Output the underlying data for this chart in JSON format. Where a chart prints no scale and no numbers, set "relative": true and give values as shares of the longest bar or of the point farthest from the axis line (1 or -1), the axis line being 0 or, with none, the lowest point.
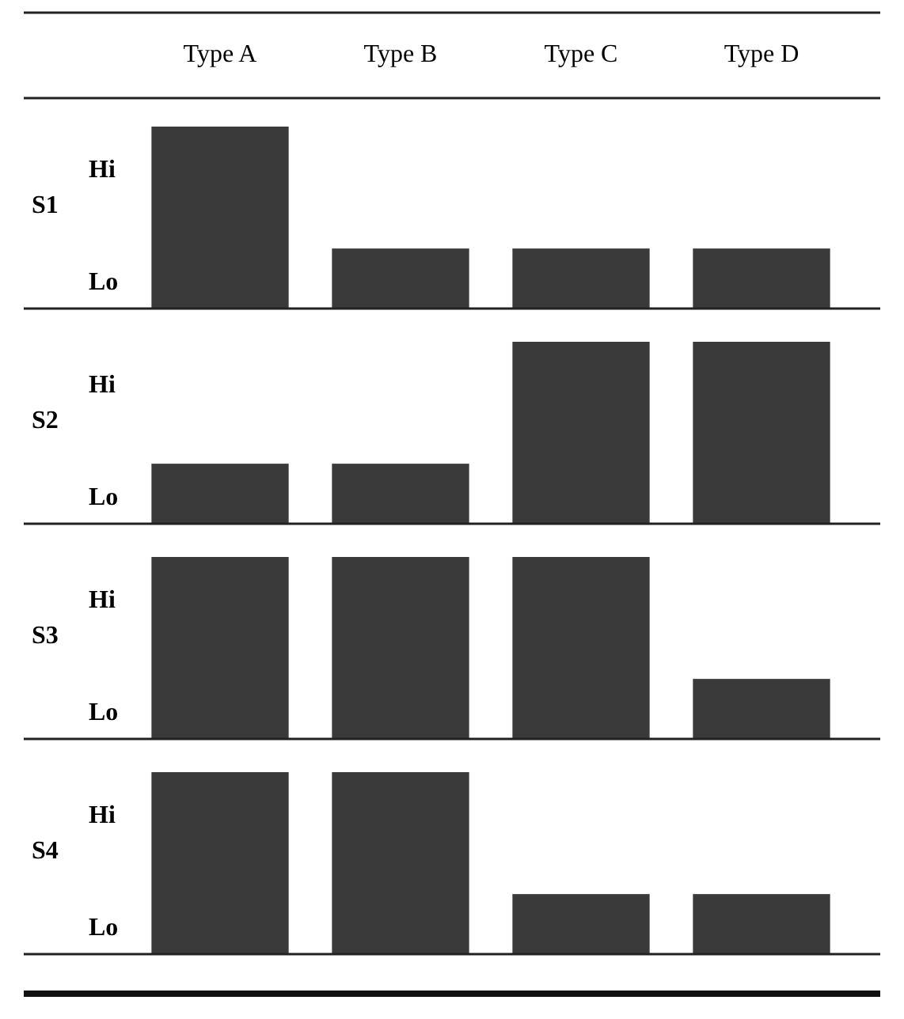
{
  "chart_data": [
    {
      "type": "bar",
      "title": "S1",
      "categories": [
        "Type A",
        "Type B",
        "Type C",
        "Type D"
      ],
      "values": [
        1,
        0.33,
        0.33,
        0.33
      ],
      "color": "#3a3a3a",
      "relative": true,
      "annotations": [
        "Hi",
        "Lo"
      ],
      "tick_labels": "x"
    },
    {
      "type": "bar",
      "title": "S2",
      "categories": [
        null,
        null,
        null,
        null
      ],
      "values": [
        0.33,
        0.33,
        1,
        1
      ],
      "color": "#3a3a3a",
      "relative": true,
      "annotations": [
        "Hi",
        "Lo"
      ],
      "tick_labels": false
    },
    {
      "type": "bar",
      "title": "S3",
      "categories": [
        null,
        null,
        null,
        null
      ],
      "values": [
        1,
        1,
        1,
        0.33
      ],
      "color": "#3a3a3a",
      "relative": true,
      "annotations": [
        "Hi",
        "Lo"
      ],
      "tick_labels": false
    },
    {
      "type": "bar",
      "title": "S4",
      "categories": [
        null,
        null,
        null,
        null
      ],
      "values": [
        1,
        1,
        0.33,
        0.33
      ],
      "color": "#3a3a3a",
      "relative": true,
      "annotations": [
        "Hi",
        "Lo"
      ],
      "tick_labels": false
    }
  ]
}
